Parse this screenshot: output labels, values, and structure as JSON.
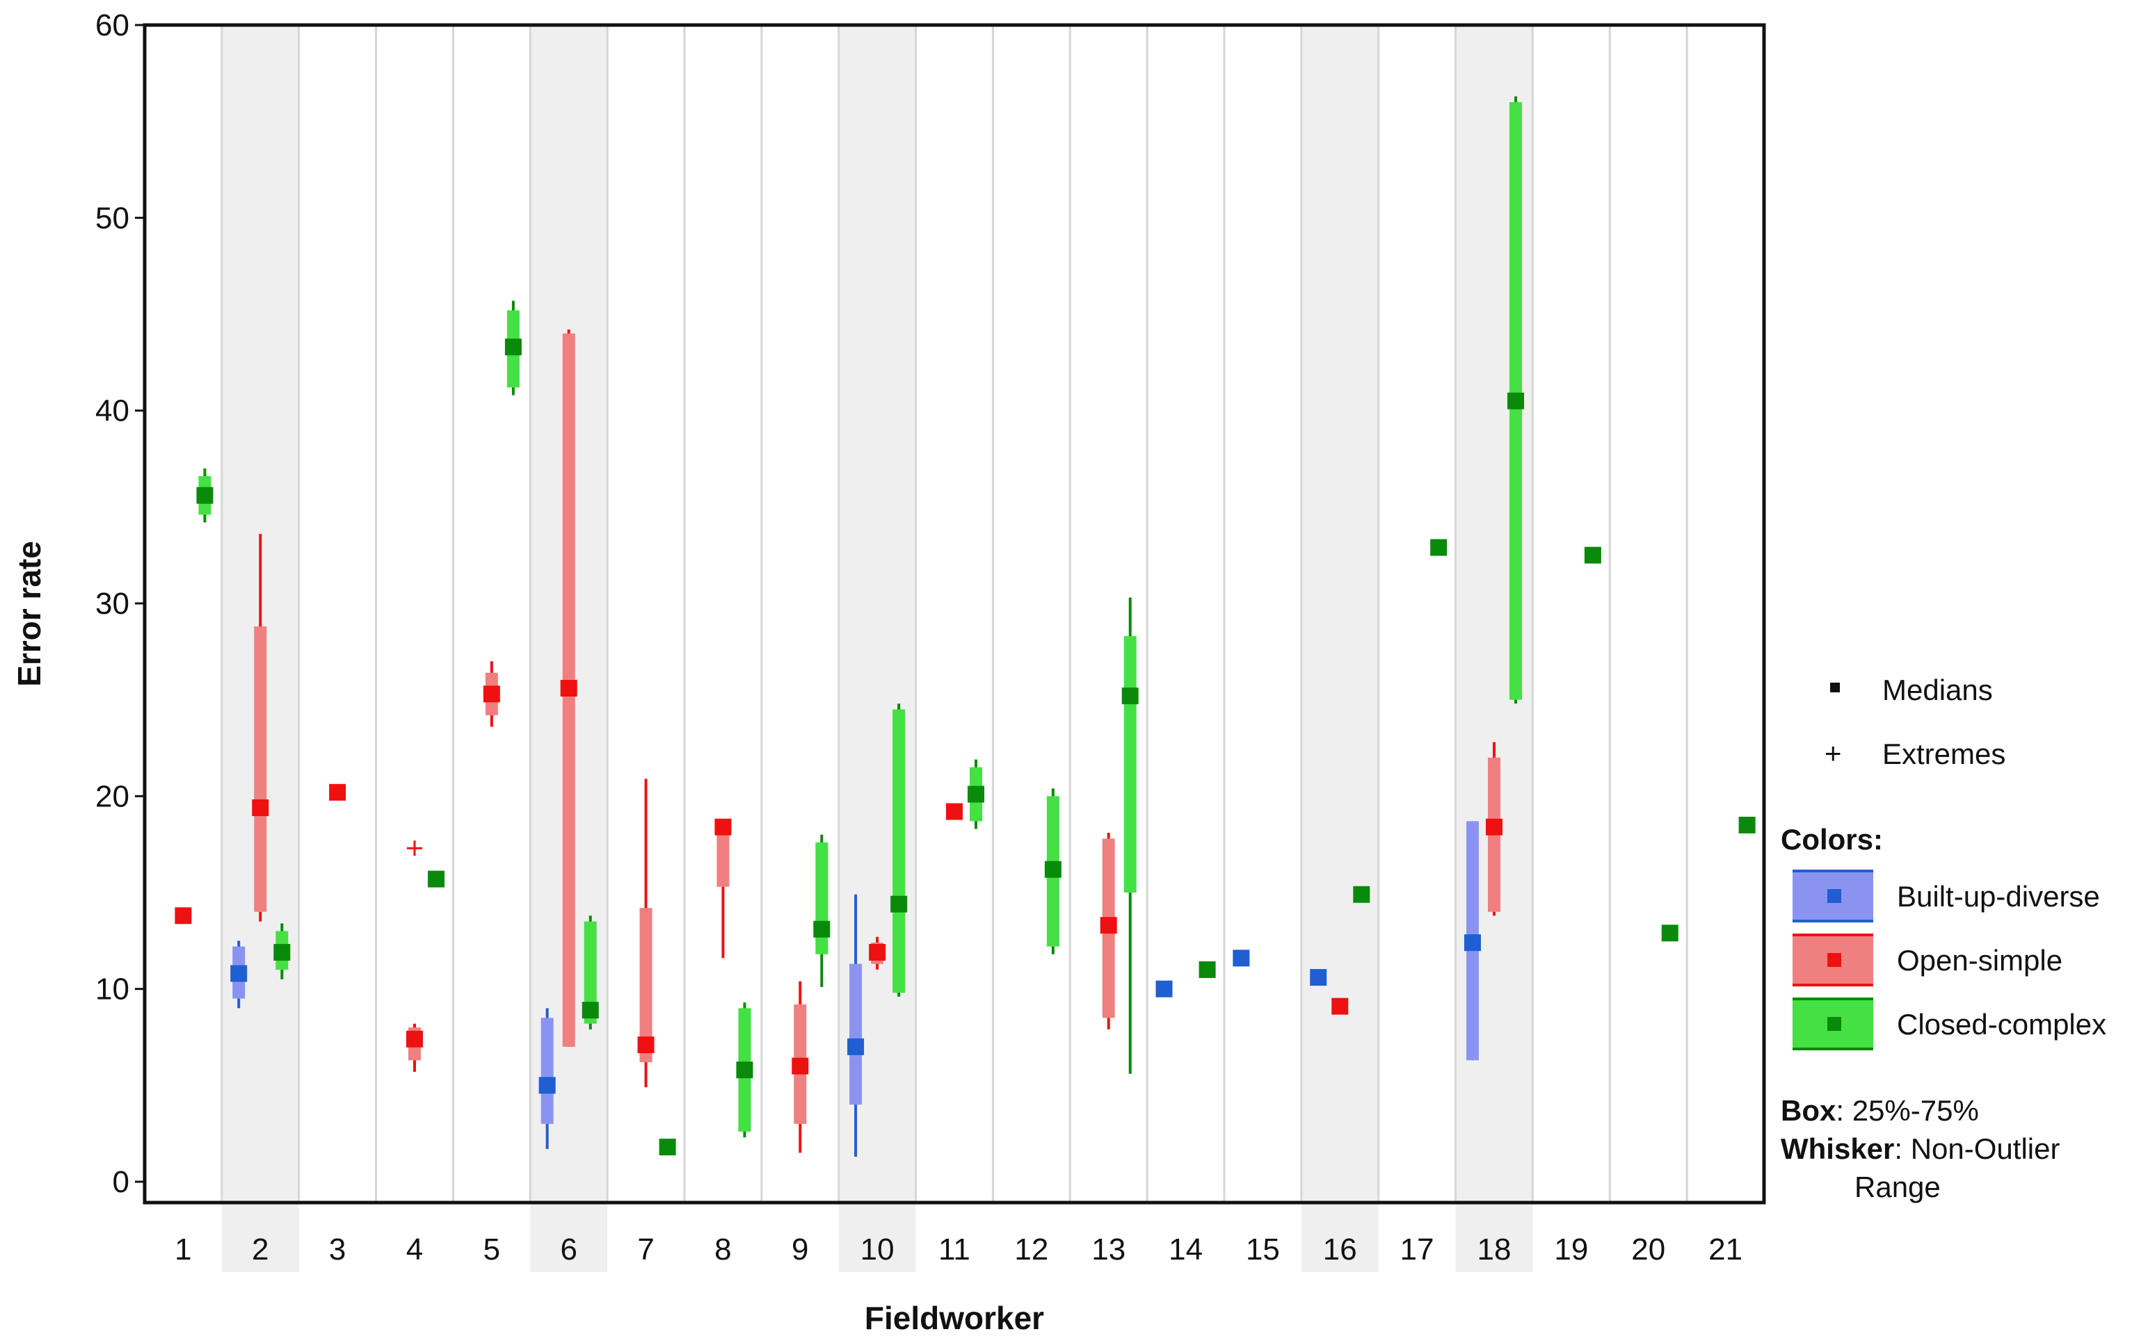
{
  "chart_data": {
    "type": "box",
    "xlabel": "Fieldworker",
    "ylabel": "Error rate",
    "ylim": [
      0,
      60
    ],
    "y_ticks": [
      0,
      10,
      20,
      30,
      40,
      50,
      60
    ],
    "categories": [
      "1",
      "2",
      "3",
      "4",
      "5",
      "6",
      "7",
      "8",
      "9",
      "10",
      "11",
      "12",
      "13",
      "14",
      "15",
      "16",
      "17",
      "18",
      "19",
      "20",
      "21"
    ],
    "shaded_categories": [
      "2",
      "6",
      "10",
      "16",
      "18"
    ],
    "series": [
      {
        "name": "Built-up-diverse",
        "color": "#1f5fd1",
        "box_color": "#8a94f0",
        "points": [
          {
            "x": "2",
            "median": 10.8,
            "q1": 9.5,
            "q3": 12.2,
            "whisker_low": 9.0,
            "whisker_high": 12.5
          },
          {
            "x": "6",
            "median": 5.0,
            "q1": 3.0,
            "q3": 8.5,
            "whisker_low": 1.7,
            "whisker_high": 9.0
          },
          {
            "x": "10",
            "median": 7.0,
            "q1": 4.0,
            "q3": 11.3,
            "whisker_low": 1.3,
            "whisker_high": 14.9
          },
          {
            "x": "14",
            "median": 10.0
          },
          {
            "x": "15",
            "median": 11.6
          },
          {
            "x": "16",
            "median": 10.6
          },
          {
            "x": "18",
            "median": 12.4,
            "q1": 6.3,
            "q3": 18.7,
            "whisker_low": 6.3,
            "whisker_high": 18.7
          }
        ]
      },
      {
        "name": "Open-simple",
        "color": "#ee1111",
        "box_color": "#f08080",
        "points": [
          {
            "x": "1",
            "median": 13.8
          },
          {
            "x": "2",
            "median": 19.4,
            "q1": 14.0,
            "q3": 28.8,
            "whisker_low": 13.5,
            "whisker_high": 33.6
          },
          {
            "x": "3",
            "median": 20.2
          },
          {
            "x": "4",
            "median": 7.4,
            "q1": 6.3,
            "q3": 8.0,
            "whisker_low": 5.7,
            "whisker_high": 8.2,
            "extreme": 17.3
          },
          {
            "x": "5",
            "median": 25.3,
            "q1": 24.2,
            "q3": 26.4,
            "whisker_low": 23.6,
            "whisker_high": 27.0
          },
          {
            "x": "6",
            "median": 25.6,
            "q1": 7.0,
            "q3": 44.0,
            "whisker_low": 7.0,
            "whisker_high": 44.2
          },
          {
            "x": "7",
            "median": 7.1,
            "q1": 6.2,
            "q3": 14.2,
            "whisker_low": 4.9,
            "whisker_high": 20.9
          },
          {
            "x": "8",
            "median": 18.4,
            "q1": 15.3,
            "q3": 18.6,
            "whisker_low": 11.6,
            "whisker_high": 18.6
          },
          {
            "x": "9",
            "median": 6.0,
            "q1": 3.0,
            "q3": 9.2,
            "whisker_low": 1.5,
            "whisker_high": 10.4
          },
          {
            "x": "10",
            "median": 11.9,
            "q1": 11.3,
            "q3": 12.4,
            "whisker_low": 11.0,
            "whisker_high": 12.7
          },
          {
            "x": "11",
            "median": 19.2
          },
          {
            "x": "13",
            "median": 13.3,
            "q1": 8.5,
            "q3": 17.8,
            "whisker_low": 7.9,
            "whisker_high": 18.1
          },
          {
            "x": "16",
            "median": 9.1
          },
          {
            "x": "18",
            "median": 18.4,
            "q1": 14.0,
            "q3": 22.0,
            "whisker_low": 13.8,
            "whisker_high": 22.8
          }
        ]
      },
      {
        "name": "Closed-complex",
        "color": "#0a8a0a",
        "box_color": "#44e044",
        "points": [
          {
            "x": "1",
            "median": 35.6,
            "q1": 34.6,
            "q3": 36.6,
            "whisker_low": 34.2,
            "whisker_high": 37.0
          },
          {
            "x": "2",
            "median": 11.9,
            "q1": 11.0,
            "q3": 13.0,
            "whisker_low": 10.5,
            "whisker_high": 13.4
          },
          {
            "x": "4",
            "median": 15.7
          },
          {
            "x": "5",
            "median": 43.3,
            "q1": 41.2,
            "q3": 45.2,
            "whisker_low": 40.8,
            "whisker_high": 45.7
          },
          {
            "x": "6",
            "median": 8.9,
            "q1": 8.2,
            "q3": 13.5,
            "whisker_low": 7.9,
            "whisker_high": 13.8
          },
          {
            "x": "7",
            "median": 1.8
          },
          {
            "x": "8",
            "median": 5.8,
            "q1": 2.6,
            "q3": 9.0,
            "whisker_low": 2.3,
            "whisker_high": 9.3
          },
          {
            "x": "9",
            "median": 13.1,
            "q1": 11.8,
            "q3": 17.6,
            "whisker_low": 10.1,
            "whisker_high": 18.0
          },
          {
            "x": "10",
            "median": 14.4,
            "q1": 9.8,
            "q3": 24.5,
            "whisker_low": 9.6,
            "whisker_high": 24.8
          },
          {
            "x": "11",
            "median": 20.1,
            "q1": 18.7,
            "q3": 21.5,
            "whisker_low": 18.3,
            "whisker_high": 21.9
          },
          {
            "x": "12",
            "median": 16.2,
            "q1": 12.2,
            "q3": 20.0,
            "whisker_low": 11.8,
            "whisker_high": 20.4
          },
          {
            "x": "13",
            "median": 25.2,
            "q1": 15.0,
            "q3": 28.3,
            "whisker_low": 5.6,
            "whisker_high": 30.3
          },
          {
            "x": "14",
            "median": 11.0,
            "q1": 10.7,
            "q3": 11.3,
            "whisker_low": 10.6,
            "whisker_high": 11.4
          },
          {
            "x": "16",
            "median": 14.9
          },
          {
            "x": "17",
            "median": 32.9
          },
          {
            "x": "18",
            "median": 40.5,
            "q1": 25.0,
            "q3": 56.0,
            "whisker_low": 24.8,
            "whisker_high": 56.3
          },
          {
            "x": "19",
            "median": 32.5
          },
          {
            "x": "20",
            "median": 12.9
          },
          {
            "x": "21",
            "median": 18.5
          }
        ]
      }
    ],
    "legend": {
      "placement": "right",
      "medians_label": "Medians",
      "extremes_label": "Extremes",
      "extremes_glyph": "+",
      "colors_title": "Colors:",
      "box_label": "Box",
      "box_text": ": 25%-75%",
      "whisker_label": "Whisker",
      "whisker_text": ": Non-Outlier",
      "whisker_text2": "Range"
    }
  }
}
